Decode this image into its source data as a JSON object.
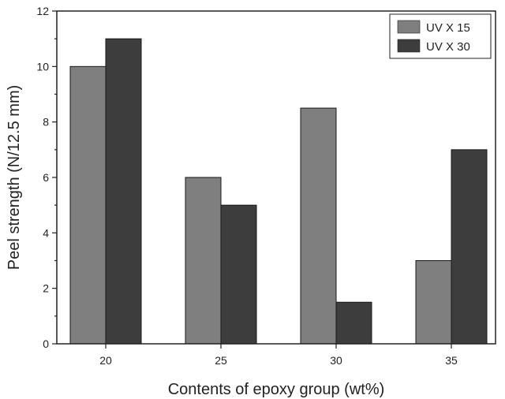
{
  "chart_data": {
    "type": "bar",
    "categories": [
      "20",
      "25",
      "30",
      "35"
    ],
    "series": [
      {
        "name": "UV X 15",
        "values": [
          10,
          6,
          8.5,
          3
        ],
        "color": "#7f7f7f"
      },
      {
        "name": "UV X 30",
        "values": [
          11,
          5,
          1.5,
          7
        ],
        "color": "#3d3d3d"
      }
    ],
    "title": "",
    "xlabel": "Contents of epoxy group (wt%)",
    "ylabel": "Peel strength (N/12.5 mm)",
    "ylim": [
      0,
      12
    ],
    "yticks": [
      0,
      2,
      4,
      6,
      8,
      10,
      12
    ],
    "grid": false,
    "legend_position": "top-right"
  }
}
